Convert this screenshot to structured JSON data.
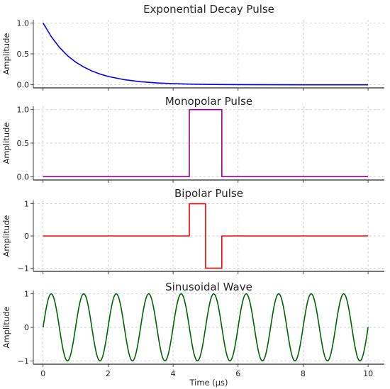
{
  "chart_data": [
    {
      "type": "line",
      "title": "Exponential Decay Pulse",
      "ylabel": "Amplitude",
      "xlabel": "",
      "xlim": [
        -0.3,
        10.5
      ],
      "ylim": [
        -0.05,
        1.05
      ],
      "xticks": [
        0,
        2,
        4,
        6,
        8,
        10
      ],
      "show_xtick_labels": false,
      "yticks": [
        0.0,
        0.5,
        1.0
      ],
      "ytick_labels": [
        "0.0",
        "0.5",
        "1.0"
      ],
      "grid": true,
      "series": [
        {
          "color": "#0000ff",
          "x": [
            0,
            0.25,
            0.5,
            0.75,
            1.0,
            1.25,
            1.5,
            1.75,
            2.0,
            2.5,
            3.0,
            3.5,
            4.0,
            4.5,
            5.0,
            5.5,
            6.0,
            7.0,
            8.0,
            9.0,
            10.0
          ],
          "y": [
            1.0,
            0.779,
            0.607,
            0.472,
            0.368,
            0.287,
            0.223,
            0.174,
            0.135,
            0.082,
            0.05,
            0.03,
            0.018,
            0.011,
            0.007,
            0.004,
            0.002,
            0.001,
            0.0,
            0.0,
            0.0
          ]
        }
      ]
    },
    {
      "type": "line",
      "title": "Monopolar Pulse",
      "ylabel": "Amplitude",
      "xlabel": "",
      "xlim": [
        -0.3,
        10.5
      ],
      "ylim": [
        -0.05,
        1.05
      ],
      "xticks": [
        0,
        2,
        4,
        6,
        8,
        10
      ],
      "show_xtick_labels": false,
      "yticks": [
        0.0,
        0.5,
        1.0
      ],
      "ytick_labels": [
        "0.0",
        "0.5",
        "1.0"
      ],
      "grid": true,
      "series": [
        {
          "color": "#9b009b",
          "x": [
            0,
            4.5,
            4.5,
            5.5,
            5.5,
            10
          ],
          "y": [
            0,
            0,
            1,
            1,
            0,
            0
          ]
        }
      ]
    },
    {
      "type": "line",
      "title": "Bipolar Pulse",
      "ylabel": "Amplitude",
      "xlabel": "",
      "xlim": [
        -0.3,
        10.5
      ],
      "ylim": [
        -1.1,
        1.1
      ],
      "xticks": [
        0,
        2,
        4,
        6,
        8,
        10
      ],
      "show_xtick_labels": false,
      "yticks": [
        -1,
        0,
        1
      ],
      "ytick_labels": [
        "−1",
        "0",
        "1"
      ],
      "grid": true,
      "series": [
        {
          "color": "#ff0000",
          "x": [
            0,
            4.5,
            4.5,
            5.0,
            5.0,
            5.5,
            5.5,
            10
          ],
          "y": [
            0,
            0,
            1,
            1,
            -1,
            -1,
            0,
            0
          ]
        }
      ]
    },
    {
      "type": "line",
      "title": "Sinusoidal Wave",
      "ylabel": "Amplitude",
      "xlabel": "Time (μs)",
      "xlim": [
        -0.3,
        10.5
      ],
      "ylim": [
        -1.1,
        1.1
      ],
      "xticks": [
        0,
        2,
        4,
        6,
        8,
        10
      ],
      "xtick_labels": [
        "0",
        "2",
        "4",
        "6",
        "8",
        "10"
      ],
      "show_xtick_labels": true,
      "yticks": [
        -1,
        0,
        1
      ],
      "ytick_labels": [
        "−1",
        "0",
        "1"
      ],
      "grid": true,
      "series": [
        {
          "color": "#006400",
          "function": "sin",
          "frequency_cycles_per_unit": 1,
          "amplitude": 1,
          "x_range": [
            0,
            10
          ]
        }
      ]
    }
  ]
}
